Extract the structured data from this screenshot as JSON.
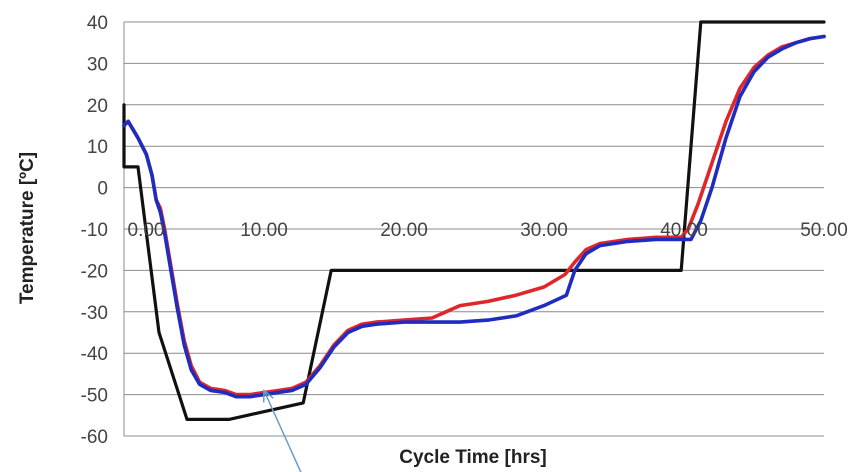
{
  "chart_data": {
    "type": "line",
    "title": "",
    "xlabel": "Cycle Time [hrs]",
    "ylabel": "Temperature [ºC]",
    "xlim": [
      0,
      50
    ],
    "ylim": [
      -60,
      40
    ],
    "x_ticks": [
      0,
      10,
      20,
      30,
      40,
      50
    ],
    "x_tick_labels": [
      "0.00",
      "10.00",
      "20.00",
      "30.00",
      "40.00",
      "50.00"
    ],
    "x_tick_label_row_y": -10,
    "y_ticks": [
      40,
      30,
      20,
      10,
      0,
      -10,
      -20,
      -30,
      -40,
      -50,
      -60
    ],
    "y_tick_labels": [
      "40",
      "30",
      "20",
      "10",
      "0",
      "-10",
      "-20",
      "-30",
      "-40",
      "-50",
      "-60"
    ],
    "grid": true,
    "legend": "none",
    "series": [
      {
        "color": "#111111",
        "points": [
          [
            0.0,
            20
          ],
          [
            0.0,
            5
          ],
          [
            1.0,
            5
          ],
          [
            2.5,
            -35
          ],
          [
            4.5,
            -56
          ],
          [
            7.5,
            -56
          ],
          [
            12.8,
            -52
          ],
          [
            14.8,
            -20
          ],
          [
            39.8,
            -20
          ],
          [
            41.2,
            40
          ],
          [
            50.0,
            40
          ]
        ]
      },
      {
        "color": "#e0262b",
        "points": [
          [
            0.0,
            15
          ],
          [
            0.3,
            16
          ],
          [
            1.0,
            12
          ],
          [
            1.6,
            8
          ],
          [
            2.0,
            3
          ],
          [
            2.3,
            -3
          ],
          [
            2.6,
            -5
          ],
          [
            2.9,
            -10
          ],
          [
            3.3,
            -18
          ],
          [
            3.8,
            -28
          ],
          [
            4.3,
            -37
          ],
          [
            4.8,
            -43
          ],
          [
            5.4,
            -47
          ],
          [
            6.2,
            -48.5
          ],
          [
            7.2,
            -49
          ],
          [
            8.0,
            -50
          ],
          [
            9.0,
            -50
          ],
          [
            10.0,
            -49.5
          ],
          [
            11.0,
            -49
          ],
          [
            12.0,
            -48.5
          ],
          [
            13.0,
            -47
          ],
          [
            14.0,
            -43
          ],
          [
            15.0,
            -38
          ],
          [
            16.0,
            -34.5
          ],
          [
            17.0,
            -33
          ],
          [
            18.0,
            -32.5
          ],
          [
            20.0,
            -32
          ],
          [
            22.0,
            -31.5
          ],
          [
            23.0,
            -30
          ],
          [
            24.0,
            -28.5
          ],
          [
            26.0,
            -27.5
          ],
          [
            28.0,
            -26
          ],
          [
            30.0,
            -24
          ],
          [
            31.5,
            -21
          ],
          [
            32.2,
            -18
          ],
          [
            33.0,
            -15
          ],
          [
            34.0,
            -13.5
          ],
          [
            36.0,
            -12.5
          ],
          [
            38.0,
            -12
          ],
          [
            39.8,
            -12
          ],
          [
            40.3,
            -10
          ],
          [
            41.0,
            -4
          ],
          [
            42.0,
            6
          ],
          [
            43.0,
            16
          ],
          [
            44.0,
            24
          ],
          [
            45.0,
            29
          ],
          [
            46.0,
            32
          ],
          [
            47.0,
            34
          ],
          [
            48.0,
            35
          ],
          [
            49.0,
            36
          ],
          [
            50.0,
            36.5
          ]
        ]
      },
      {
        "color": "#1f2cc0",
        "points": [
          [
            0.0,
            15
          ],
          [
            0.3,
            16
          ],
          [
            1.0,
            12
          ],
          [
            1.6,
            8
          ],
          [
            2.0,
            3
          ],
          [
            2.3,
            -3
          ],
          [
            2.6,
            -6
          ],
          [
            2.9,
            -11
          ],
          [
            3.3,
            -19
          ],
          [
            3.8,
            -29
          ],
          [
            4.3,
            -38
          ],
          [
            4.8,
            -44
          ],
          [
            5.4,
            -47.5
          ],
          [
            6.2,
            -49
          ],
          [
            7.2,
            -49.5
          ],
          [
            8.0,
            -50.5
          ],
          [
            9.0,
            -50.5
          ],
          [
            10.0,
            -50
          ],
          [
            11.0,
            -49.5
          ],
          [
            12.0,
            -49
          ],
          [
            13.0,
            -47.5
          ],
          [
            14.0,
            -43.5
          ],
          [
            15.0,
            -38.5
          ],
          [
            16.0,
            -35
          ],
          [
            17.0,
            -33.5
          ],
          [
            18.0,
            -33
          ],
          [
            20.0,
            -32.5
          ],
          [
            22.0,
            -32.5
          ],
          [
            24.0,
            -32.5
          ],
          [
            26.0,
            -32
          ],
          [
            28.0,
            -31
          ],
          [
            30.0,
            -28.5
          ],
          [
            31.6,
            -26
          ],
          [
            32.2,
            -20
          ],
          [
            33.0,
            -16
          ],
          [
            34.0,
            -14
          ],
          [
            36.0,
            -13
          ],
          [
            38.0,
            -12.5
          ],
          [
            40.5,
            -12.5
          ],
          [
            41.2,
            -8
          ],
          [
            42.0,
            0
          ],
          [
            43.0,
            12
          ],
          [
            44.0,
            22
          ],
          [
            45.0,
            28
          ],
          [
            46.0,
            31.5
          ],
          [
            47.0,
            33.5
          ],
          [
            48.0,
            35
          ],
          [
            49.0,
            36
          ],
          [
            50.0,
            36.5
          ]
        ]
      }
    ],
    "annotation": {
      "type": "arrow",
      "color": "#6b9cc8",
      "from": [
        12.8,
        -70
      ],
      "to": [
        10.0,
        -49
      ]
    }
  }
}
